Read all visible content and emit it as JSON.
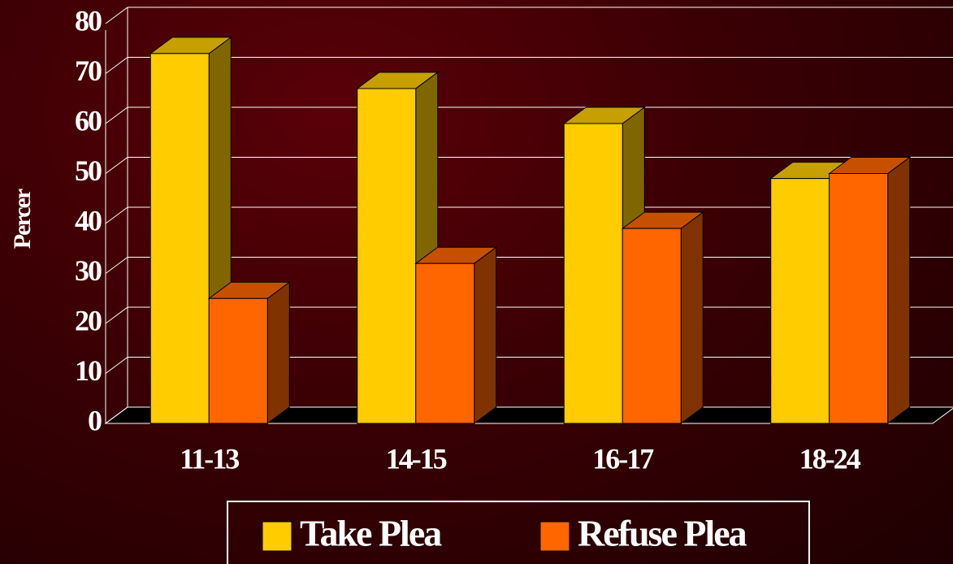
{
  "chart_data": {
    "type": "bar3d",
    "y_label": "Percer",
    "categories": [
      "11-13",
      "14-15",
      "16-17",
      "18-24"
    ],
    "series": [
      {
        "name": "Take Plea",
        "color": "#ffcc00",
        "values": [
          74,
          67,
          60,
          49
        ]
      },
      {
        "name": "Refuse Plea",
        "color": "#ff6600",
        "values": [
          25,
          32,
          39,
          50
        ]
      }
    ],
    "ylim": [
      0,
      80
    ],
    "yticks": [
      0,
      10,
      20,
      30,
      40,
      50,
      60,
      70,
      80
    ],
    "grid": true,
    "legend": "bottom"
  }
}
